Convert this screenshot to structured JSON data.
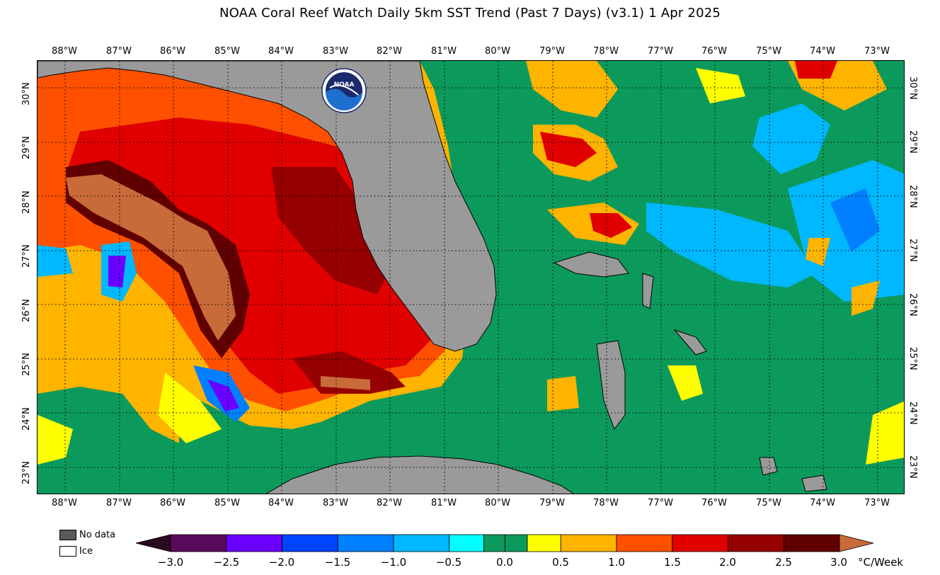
{
  "title": "NOAA Coral Reef Watch Daily 5km SST Trend (Past 7 Days)  (v3.1)   1 Apr 2025",
  "logo": {
    "text": "NOAA",
    "icon": "noaa-seal-icon"
  },
  "axes": {
    "longitudes": [
      "88°W",
      "87°W",
      "86°W",
      "85°W",
      "84°W",
      "83°W",
      "82°W",
      "81°W",
      "80°W",
      "79°W",
      "78°W",
      "77°W",
      "76°W",
      "75°W",
      "74°W",
      "73°W"
    ],
    "latitudes": [
      "30°N",
      "29°N",
      "28°N",
      "27°N",
      "26°N",
      "25°N",
      "24°N",
      "23°N"
    ]
  },
  "legend_keys": [
    {
      "label": "No data",
      "color": "#5a5a5a"
    },
    {
      "label": "Ice",
      "color": "#ffffff"
    }
  ],
  "colorbar": {
    "ticks": [
      "−3.0",
      "−2.5",
      "−2.0",
      "−1.5",
      "−1.0",
      "−0.5",
      "0.0",
      "0.5",
      "1.0",
      "1.5",
      "2.0",
      "2.5",
      "3.0"
    ],
    "unit": "°C/Week",
    "colors": [
      "#5a0a5a",
      "#6a00ff",
      "#0044ff",
      "#0080ff",
      "#00b8ff",
      "#00ffff",
      "#0c9a5c",
      "#0c9a5c",
      "#ffff00",
      "#ffb400",
      "#ff5000",
      "#e00000",
      "#960000",
      "#600000"
    ],
    "under_color": "#2a0a20",
    "over_color": "#c96a3a"
  },
  "map_colors": {
    "land": "#9a9a9a",
    "neutral": "#0c9a5c",
    "yellow": "#ffff00",
    "orange": "#ffb400",
    "red_orange": "#ff5000",
    "red": "#e00000",
    "dark_red": "#960000",
    "darkest": "#600000",
    "over": "#c96a3a",
    "cyan": "#00ffff",
    "light_blue": "#00b8ff",
    "blue": "#0080ff",
    "deep_blue": "#0044ff",
    "violet": "#6a00ff"
  }
}
